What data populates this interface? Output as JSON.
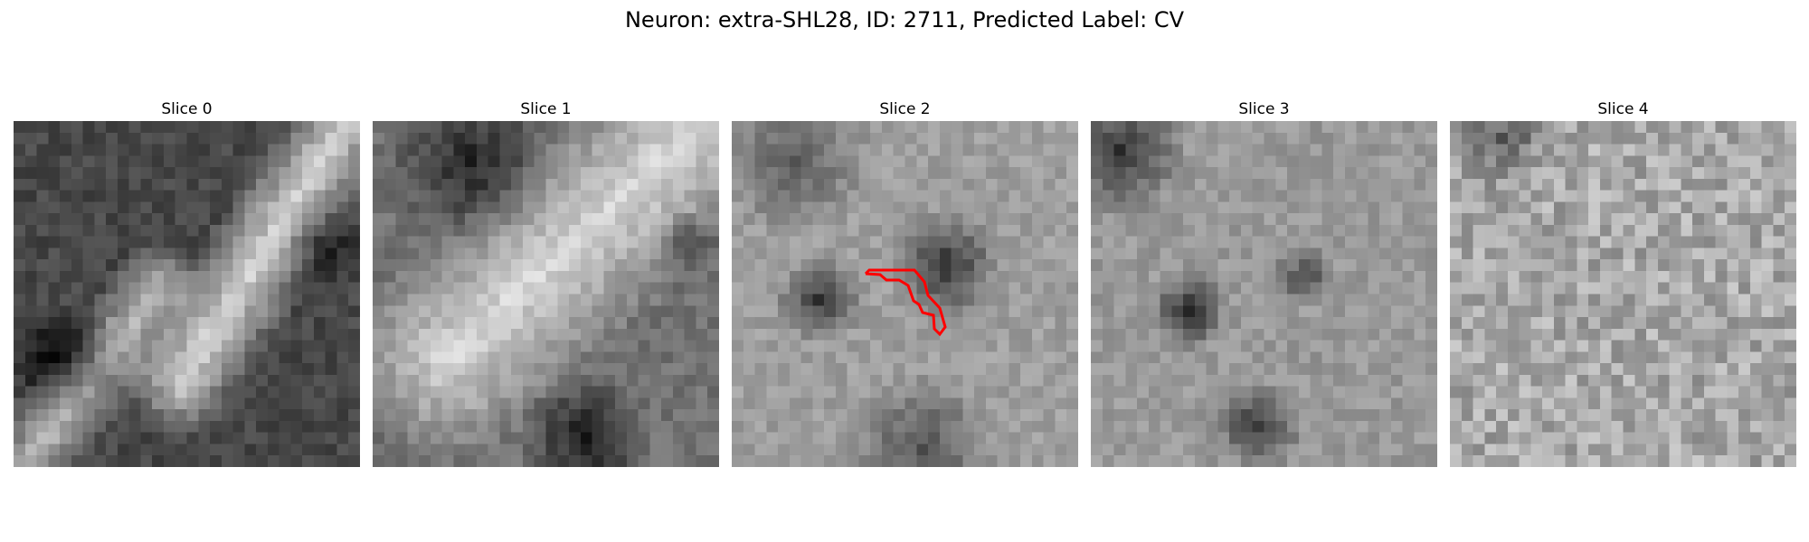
{
  "figure": {
    "title": "Neuron: extra-SHL28, ID: 2711, Predicted Label: CV"
  },
  "panels": [
    {
      "title": "Slice 0",
      "seed": 11,
      "profile": "slice0"
    },
    {
      "title": "Slice 1",
      "seed": 23,
      "profile": "slice1"
    },
    {
      "title": "Slice 2",
      "seed": 37,
      "profile": "slice2",
      "has_contour": true
    },
    {
      "title": "Slice 3",
      "seed": 41,
      "profile": "slice3"
    },
    {
      "title": "Slice 4",
      "seed": 53,
      "profile": "slice4"
    }
  ],
  "colors": {
    "contour": "#ff0000",
    "colormap": "gray"
  }
}
